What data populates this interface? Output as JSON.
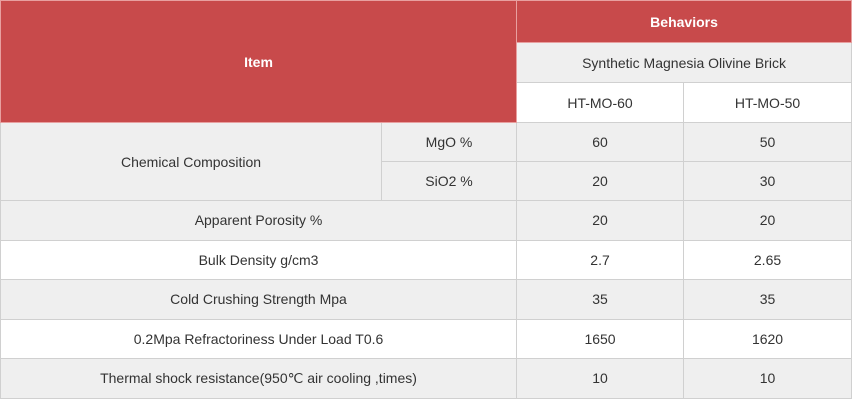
{
  "header": {
    "item": "Item",
    "behaviors": "Behaviors",
    "product": "Synthetic Magnesia Olivine Brick",
    "grades": [
      "HT-MO-60",
      "HT-MO-50"
    ]
  },
  "table": {
    "group": "Chemical Composition",
    "composition": [
      [
        "MgO %",
        60,
        50
      ],
      [
        "SiO2 %",
        20,
        30
      ]
    ],
    "rows": [
      [
        "Apparent Porosity %",
        20,
        20
      ],
      [
        "Bulk Density g/cm3",
        2.7,
        2.65
      ],
      [
        "Cold Crushing Strength Mpa",
        35,
        35
      ],
      [
        "0.2Mpa Refractoriness Under Load T0.6",
        1650,
        1620
      ],
      [
        "Thermal shock resistance(950℃ air cooling ,times)",
        10,
        10
      ]
    ]
  }
}
